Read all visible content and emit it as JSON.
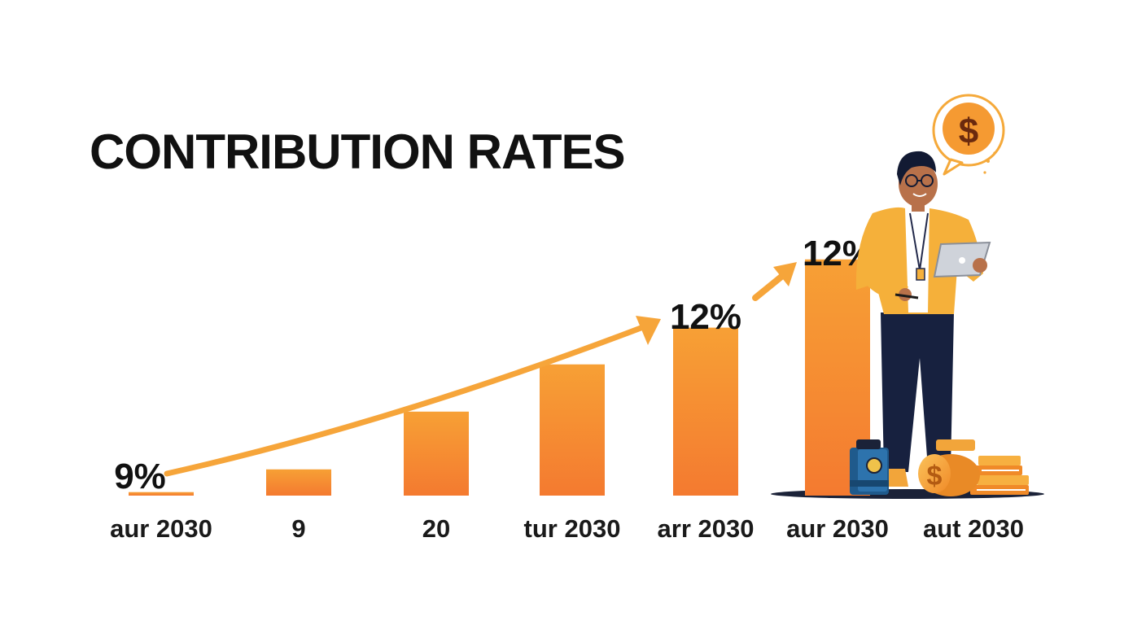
{
  "colors": {
    "bar_top": "#f7a035",
    "bar_bottom": "#f47a30",
    "arrow": "#f6a53a",
    "text": "#111111"
  },
  "chart_data": {
    "type": "bar",
    "title": "CONTRIBUTION RATES",
    "categories": [
      "aur 2030",
      "9",
      "20",
      "tur 2030",
      "arr 2030",
      "aur 2030",
      "aut 2030"
    ],
    "values": [
      0.2,
      1.5,
      4.8,
      7.5,
      9.6,
      13.5,
      null
    ],
    "ylim": [
      0,
      16
    ],
    "annotations": [
      {
        "text": "9%",
        "category_index": 0
      },
      {
        "text": "12%",
        "category_index": 4
      },
      {
        "text": "12%",
        "category_index": 5
      }
    ],
    "trend_arrow": {
      "direction": "up",
      "from_category": 0,
      "to_category": 5
    }
  },
  "illustration": {
    "icons": [
      "person-with-tablet-icon",
      "dollar-speech-bubble-icon",
      "briefcase-icon",
      "coin-stack-icon",
      "book-stack-icon"
    ],
    "bubble_symbol": "$",
    "coin_symbol": "$"
  }
}
